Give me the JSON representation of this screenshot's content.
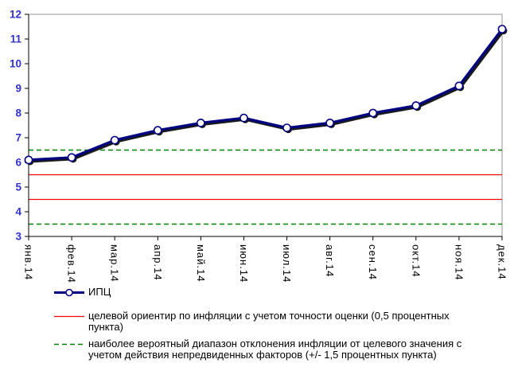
{
  "chart_data": {
    "type": "line",
    "title": "",
    "categories": [
      "янв.14",
      "фев.14",
      "мар.14",
      "апр.14",
      "май.14",
      "июн.14",
      "июл.14",
      "авг.14",
      "сен.14",
      "окт.14",
      "ноя.14",
      "дек.14"
    ],
    "series": [
      {
        "name": "ИПЦ",
        "values": [
          6.1,
          6.2,
          6.9,
          7.3,
          7.6,
          7.8,
          7.4,
          7.6,
          8.0,
          8.3,
          9.1,
          11.4
        ],
        "color": "#000080",
        "marker": "open-circle-white",
        "shadow": true
      }
    ],
    "reference_lines": [
      {
        "name": "inflation-target-band",
        "values": [
          5.5,
          4.5
        ],
        "color": "#ff0000",
        "style": "solid"
      },
      {
        "name": "likely-deviation-range",
        "values": [
          6.5,
          3.5
        ],
        "color": "#008000",
        "style": "dashed"
      }
    ],
    "ylim": [
      3,
      12
    ],
    "yticks": [
      3,
      4,
      5,
      6,
      7,
      8,
      9,
      10,
      11,
      12
    ],
    "grid": false,
    "legend_position": "bottom-left"
  },
  "legend": {
    "items": [
      {
        "label": "ИПЦ"
      },
      {
        "label": "целевой ориентир по инфляции с учетом точности оценки (0,5 процентных пункта)"
      },
      {
        "label": "наиболее вероятный диапазон отклонения инфляции от целевого значения с учетом действия непредвиденных факторов (+/- 1,5 процентных пункта)"
      }
    ]
  },
  "style": {
    "series_color": "#000080",
    "target_line_color": "#ff0000",
    "range_line_color": "#008000",
    "axis_value_label_color": "#3333cc",
    "axis_category_label_color": "#000000",
    "axis_color": "#000000",
    "plot_frame_color": "#949494",
    "marker_shadow_color": "#1a1a1a",
    "background": "#ffffff"
  }
}
